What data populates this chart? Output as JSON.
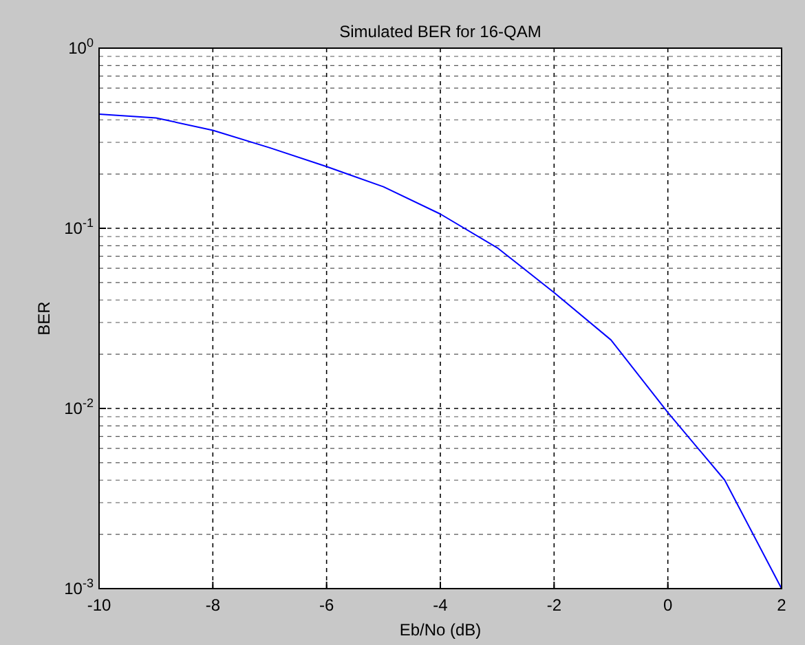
{
  "chart_data": {
    "type": "line",
    "title": "Simulated BER for 16-QAM",
    "xlabel": "Eb/No (dB)",
    "ylabel": "BER",
    "x": [
      -10,
      -9,
      -8,
      -7,
      -6,
      -5,
      -4,
      -3,
      -2,
      -1,
      0,
      1,
      2
    ],
    "series": [
      {
        "color": "#0000ff",
        "values": [
          0.43,
          0.41,
          0.35,
          0.28,
          0.22,
          0.17,
          0.12,
          0.078,
          0.044,
          0.024,
          0.0095,
          0.004,
          0.001
        ]
      }
    ],
    "xlim": [
      -10,
      2
    ],
    "xticks": [
      -10,
      -8,
      -6,
      -4,
      -2,
      0,
      2
    ],
    "ylim": [
      0.001,
      1
    ],
    "yticks": [
      {
        "value": 0.001,
        "label": "10$^{-3}$"
      },
      {
        "value": 0.01,
        "label": "10$^{-2}$"
      },
      {
        "value": 0.1,
        "label": "10$^{-1}$"
      },
      {
        "value": 1,
        "label": "10$^{0}$"
      }
    ],
    "log": "y",
    "grid": true,
    "line_style": "solid",
    "marker": "none"
  }
}
